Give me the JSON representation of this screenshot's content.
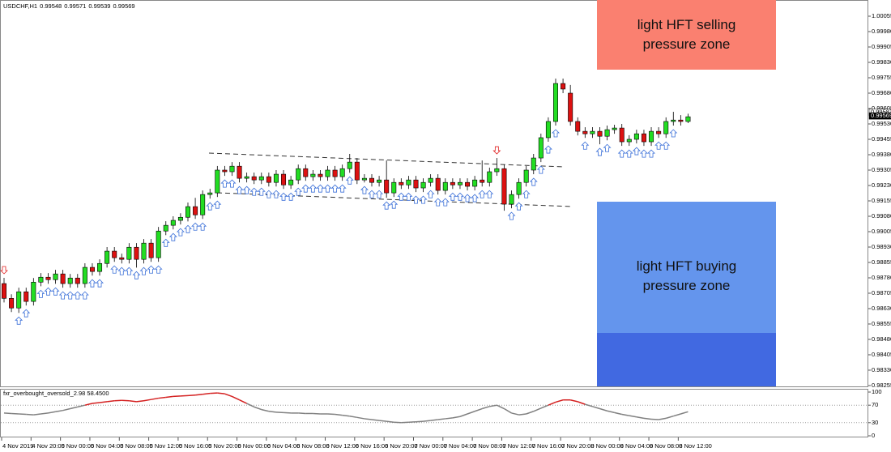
{
  "chart_data": [
    {
      "type": "candlestick",
      "title": "USDCHF,H1",
      "header_values": [
        0.99548,
        0.99571,
        0.99539,
        0.99569
      ],
      "categories": [
        "4 Nov 2019",
        null,
        null,
        null,
        "4 Nov 20:00",
        null,
        null,
        null,
        "5 Nov 00:00",
        null,
        null,
        null,
        "5 Nov 04:00",
        null,
        null,
        null,
        "5 Nov 08:00",
        null,
        null,
        null,
        "5 Nov 12:00",
        null,
        null,
        null,
        "5 Nov 16:00",
        null,
        null,
        null,
        "5 Nov 20:00",
        null,
        null,
        null,
        "6 Nov 00:00",
        null,
        null,
        null,
        "6 Nov 04:00",
        null,
        null,
        null,
        "6 Nov 08:00",
        null,
        null,
        null,
        "6 Nov 12:00",
        null,
        null,
        null,
        "6 Nov 16:00",
        null,
        null,
        null,
        "6 Nov 20:00",
        null,
        null,
        null,
        "7 Nov 00:00",
        null,
        null,
        null,
        "7 Nov 04:00",
        null,
        null,
        null,
        "7 Nov 08:00",
        null,
        null,
        null,
        "7 Nov 12:00",
        null,
        null,
        null,
        "7 Nov 16:00",
        null,
        null,
        null,
        "7 Nov 20:00",
        null,
        null,
        null,
        "8 Nov 00:00",
        null,
        null,
        null,
        "8 Nov 04:00",
        null,
        null,
        null,
        "8 Nov 08:00",
        null,
        null,
        null,
        "8 Nov 12:00",
        null
      ],
      "open": [
        0.98752,
        0.9868,
        0.98633,
        0.98712,
        0.98665,
        0.98759,
        0.98783,
        0.98771,
        0.98799,
        0.98752,
        0.98779,
        0.98752,
        0.98831,
        0.98811,
        0.9885,
        0.9891,
        0.98878,
        0.9887,
        0.98929,
        0.9887,
        0.98949,
        0.98878,
        0.99008,
        0.99036,
        0.9906,
        0.99075,
        0.99127,
        0.99087,
        0.99186,
        0.99194,
        0.99305,
        0.99297,
        0.99324,
        0.99265,
        0.99273,
        0.99257,
        0.99273,
        0.99245,
        0.99285,
        0.99233,
        0.99257,
        0.99312,
        0.99273,
        0.99285,
        0.99273,
        0.99305,
        0.99273,
        0.99312,
        0.99344,
        0.99257,
        0.99265,
        0.99245,
        0.99257,
        0.99194,
        0.99245,
        0.99233,
        0.99257,
        0.99218,
        0.99245,
        0.99265,
        0.99206,
        0.99245,
        0.99233,
        0.99245,
        0.99226,
        0.99257,
        0.99245,
        0.99297,
        0.99312,
        0.99139,
        0.99186,
        0.99245,
        0.99305,
        0.99364,
        0.99463,
        0.99542,
        0.99727,
        0.9968,
        0.99542,
        0.99494,
        0.99482,
        0.99494,
        0.9947,
        0.99502,
        0.9951,
        0.99443,
        0.99455,
        0.99482,
        0.99443,
        0.99494,
        0.99482,
        0.99542,
        0.99549,
        0.99542
      ],
      "high": [
        0.9878,
        0.987,
        0.98732,
        0.98732,
        0.98779,
        0.98803,
        0.98803,
        0.98819,
        0.98819,
        0.98799,
        0.98799,
        0.98851,
        0.98851,
        0.9887,
        0.9893,
        0.9893,
        0.98898,
        0.98949,
        0.98949,
        0.98969,
        0.98969,
        0.99028,
        0.99056,
        0.9908,
        0.99095,
        0.99147,
        0.9917,
        0.99206,
        0.99214,
        0.99325,
        0.99325,
        0.99344,
        0.99344,
        0.99293,
        0.99293,
        0.99293,
        0.99293,
        0.99305,
        0.99305,
        0.99277,
        0.99332,
        0.99332,
        0.99305,
        0.99305,
        0.99325,
        0.99325,
        0.99332,
        0.99384,
        0.99364,
        0.99285,
        0.99285,
        0.99277,
        0.99352,
        0.99265,
        0.99265,
        0.99277,
        0.99277,
        0.99265,
        0.99285,
        0.99285,
        0.99265,
        0.99265,
        0.99265,
        0.99265,
        0.99277,
        0.99352,
        0.99317,
        0.99364,
        0.99332,
        0.99206,
        0.99265,
        0.99325,
        0.99384,
        0.99483,
        0.99562,
        0.99751,
        0.99751,
        0.9972,
        0.99562,
        0.99514,
        0.99514,
        0.99514,
        0.99522,
        0.99526,
        0.9953,
        0.99475,
        0.99502,
        0.99502,
        0.99514,
        0.99514,
        0.99562,
        0.99589,
        0.99573,
        0.9958
      ],
      "low": [
        0.9866,
        0.98613,
        0.98609,
        0.98645,
        0.98645,
        0.98739,
        0.98751,
        0.98751,
        0.98732,
        0.98732,
        0.98732,
        0.98732,
        0.98791,
        0.98791,
        0.9883,
        0.98858,
        0.9885,
        0.9885,
        0.9883,
        0.9885,
        0.98858,
        0.98858,
        0.98988,
        0.99016,
        0.9904,
        0.99055,
        0.99067,
        0.99067,
        0.99166,
        0.99174,
        0.99277,
        0.99277,
        0.99245,
        0.99245,
        0.99237,
        0.99237,
        0.99225,
        0.99225,
        0.99213,
        0.99213,
        0.99237,
        0.99253,
        0.99253,
        0.99253,
        0.99253,
        0.99253,
        0.99253,
        0.99292,
        0.99237,
        0.99245,
        0.99225,
        0.99225,
        0.9917,
        0.99174,
        0.99213,
        0.99213,
        0.99198,
        0.99198,
        0.99225,
        0.99186,
        0.99186,
        0.99213,
        0.99213,
        0.99206,
        0.99206,
        0.99225,
        0.99225,
        0.99277,
        0.99107,
        0.99119,
        0.99166,
        0.99225,
        0.99285,
        0.99344,
        0.99443,
        0.99522,
        0.9968,
        0.99522,
        0.99474,
        0.99462,
        0.99462,
        0.99431,
        0.9945,
        0.99482,
        0.99423,
        0.99423,
        0.99435,
        0.99423,
        0.99423,
        0.99462,
        0.99462,
        0.99522,
        0.99522,
        0.99534
      ],
      "close": [
        0.9868,
        0.98633,
        0.98712,
        0.98665,
        0.98759,
        0.98783,
        0.98771,
        0.98799,
        0.98752,
        0.98779,
        0.98752,
        0.98831,
        0.98811,
        0.9885,
        0.9891,
        0.98878,
        0.9887,
        0.98929,
        0.9887,
        0.98949,
        0.98878,
        0.99008,
        0.99036,
        0.9906,
        0.99075,
        0.99127,
        0.99087,
        0.99186,
        0.99194,
        0.99305,
        0.99297,
        0.99324,
        0.99265,
        0.99273,
        0.99257,
        0.99273,
        0.99245,
        0.99285,
        0.99233,
        0.99257,
        0.99312,
        0.99273,
        0.99285,
        0.99273,
        0.99305,
        0.99273,
        0.99312,
        0.99344,
        0.99257,
        0.99265,
        0.99245,
        0.99257,
        0.99194,
        0.99245,
        0.99233,
        0.99257,
        0.99218,
        0.99245,
        0.99265,
        0.99206,
        0.99245,
        0.99233,
        0.99245,
        0.99226,
        0.99257,
        0.99245,
        0.99297,
        0.99312,
        0.99139,
        0.99186,
        0.99245,
        0.99305,
        0.99364,
        0.99463,
        0.99542,
        0.99727,
        0.997,
        0.99542,
        0.99494,
        0.99482,
        0.99494,
        0.9947,
        0.99502,
        0.9951,
        0.99443,
        0.99455,
        0.99482,
        0.99443,
        0.99494,
        0.99482,
        0.99542,
        0.99549,
        0.99542,
        0.99565
      ],
      "up_color": "#22dd22",
      "down_color": "#dd1111",
      "ylim": [
        0.98247,
        1.00134
      ],
      "yticks": [
        1.00055,
        {
          "value": 0.9998,
          "label": "0.99980"
        },
        0.99905,
        {
          "value": 0.9983,
          "label": "0.99830"
        },
        0.99755,
        {
          "value": 0.9968,
          "label": "0.99680"
        },
        0.99605,
        {
          "value": 0.9953,
          "label": "0.99530"
        },
        0.99455,
        {
          "value": 0.9938,
          "label": "0.99380"
        },
        0.99305,
        {
          "value": 0.9923,
          "label": "0.99230"
        },
        0.99155,
        {
          "value": 0.9908,
          "label": "0.99080"
        },
        0.99005,
        {
          "value": 0.9893,
          "label": "0.98930"
        },
        0.98855,
        {
          "value": 0.9878,
          "label": "0.98780"
        },
        0.98705,
        {
          "value": 0.9863,
          "label": "0.98630"
        },
        0.98555,
        {
          "value": 0.9848,
          "label": "0.98480"
        },
        0.98405,
        {
          "value": 0.9833,
          "label": "0.98330"
        },
        0.98255
      ],
      "price_markers": [
        0.99587,
        0.99569
      ],
      "buy_signals": [
        2,
        3,
        5,
        6,
        7,
        8,
        9,
        10,
        11,
        12,
        13,
        15,
        16,
        17,
        18,
        19,
        20,
        21,
        22,
        23,
        24,
        25,
        26,
        27,
        28,
        29,
        30,
        31,
        32,
        33,
        34,
        35,
        36,
        37,
        38,
        39,
        40,
        41,
        42,
        43,
        44,
        45,
        46,
        47,
        49,
        50,
        51,
        52,
        53,
        54,
        55,
        56,
        57,
        58,
        59,
        60,
        61,
        62,
        63,
        64,
        65,
        66,
        69,
        70,
        71,
        72,
        73,
        74,
        75,
        79,
        81,
        82,
        84,
        85,
        86,
        87,
        88,
        89,
        90,
        91
      ],
      "sell_signals": [
        0,
        67
      ],
      "buy_color": "#3a6fd8",
      "sell_color": "#e02020",
      "zones": [
        "light HFT selling pressure zone",
        "light HFT buying pressure zone"
      ]
    },
    {
      "type": "line",
      "title": "fxr_overbought_oversold_2.98 58.4500",
      "values": [
        52,
        51,
        50,
        49,
        48,
        50,
        52,
        55,
        58,
        62,
        66,
        70,
        74,
        76,
        78,
        80,
        81,
        80,
        78,
        80,
        83,
        86,
        88,
        90,
        91,
        92,
        93,
        95,
        97,
        98,
        96,
        90,
        82,
        74,
        66,
        60,
        56,
        54,
        53,
        52,
        52,
        51,
        51,
        50,
        50,
        49,
        47,
        45,
        42,
        39,
        37,
        35,
        33,
        31,
        30,
        31,
        32,
        33,
        35,
        37,
        39,
        41,
        44,
        50,
        56,
        62,
        67,
        70,
        62,
        52,
        48,
        50,
        56,
        63,
        70,
        77,
        82,
        82,
        78,
        72,
        67,
        62,
        57,
        53,
        49,
        46,
        43,
        40,
        38,
        37,
        40,
        45,
        50,
        55
      ],
      "color": "#808080",
      "highlight_color": "#d42020",
      "levels": [
        70,
        30
      ],
      "ylim": [
        0,
        100
      ],
      "yticks": [
        100,
        70,
        30,
        0
      ]
    }
  ]
}
